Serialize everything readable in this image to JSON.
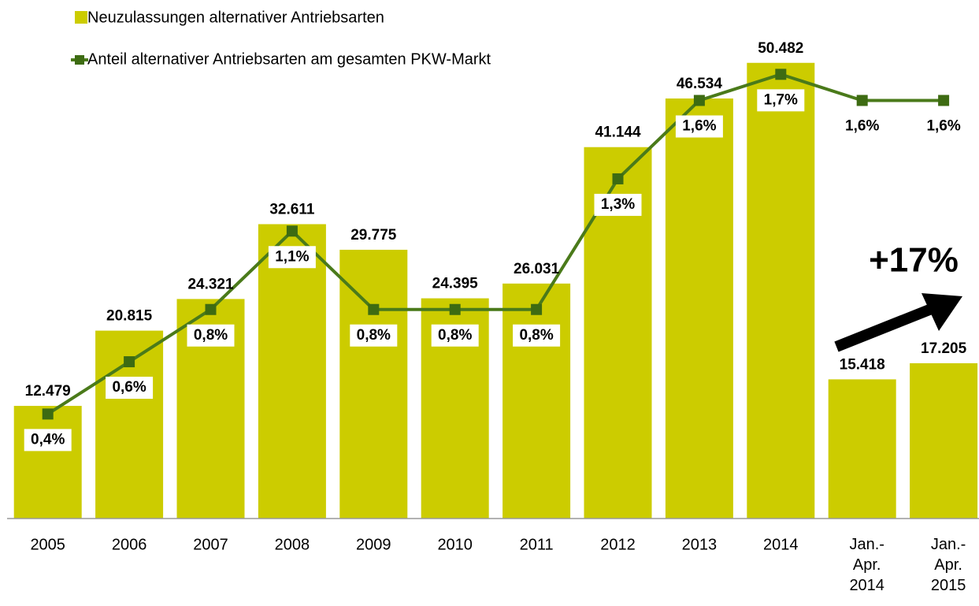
{
  "chart_data": {
    "type": "bar",
    "categories": [
      "2005",
      "2006",
      "2007",
      "2008",
      "2009",
      "2010",
      "2011",
      "2012",
      "2013",
      "2014",
      "Jan.-\nApr.\n2014",
      "Jan.-\nApr.\n2015"
    ],
    "series": [
      {
        "name": "Neuzulassungen alternativer Antriebsarten",
        "type": "bar",
        "color": "#cccc00",
        "values": [
          12479,
          20815,
          24321,
          32611,
          29775,
          24395,
          26031,
          41144,
          46534,
          50482,
          15418,
          17205
        ],
        "value_labels": [
          "12.479",
          "20.815",
          "24.321",
          "32.611",
          "29.775",
          "24.395",
          "26.031",
          "41.144",
          "46.534",
          "50.482",
          "15.418",
          "17.205"
        ]
      },
      {
        "name": "Anteil alternativer Antriebsarten am gesamten PKW-Markt",
        "type": "line",
        "axis": "y2",
        "color": "#4a7a1a",
        "values": [
          0.4,
          0.6,
          0.8,
          1.1,
          0.8,
          0.8,
          0.8,
          1.3,
          1.6,
          1.7,
          1.6,
          1.6
        ],
        "value_labels": [
          "0,4%",
          "0,6%",
          "0,8%",
          "1,1%",
          "0,8%",
          "0,8%",
          "0,8%",
          "1,3%",
          "1,6%",
          "1,7%",
          "1,6%",
          "1,6%"
        ]
      }
    ],
    "ylim": [
      0,
      55000
    ],
    "y2lim": [
      0,
      1.9
    ],
    "annotation": "+17%"
  }
}
